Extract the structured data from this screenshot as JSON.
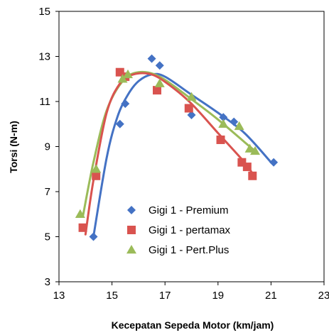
{
  "chart_data": {
    "type": "scatter",
    "title": "",
    "xlabel": "Kecepatan Sepeda Motor (km/jam)",
    "ylabel": "Torsi  (N-m)",
    "xlim": [
      13,
      23
    ],
    "ylim": [
      3,
      15
    ],
    "xticks": [
      "13",
      "15",
      "17",
      "19",
      "21",
      "23"
    ],
    "yticks": [
      "3",
      "5",
      "7",
      "9",
      "11",
      "13",
      "15"
    ],
    "grid": false,
    "legend_position": "bottom-center",
    "series": [
      {
        "name": "Gigi 1 - Premium",
        "marker": "diamond",
        "color": "#4472C4",
        "points": [
          [
            14.3,
            5.0
          ],
          [
            15.3,
            10.0
          ],
          [
            15.5,
            10.9
          ],
          [
            16.5,
            12.9
          ],
          [
            16.8,
            12.6
          ],
          [
            18.0,
            10.4
          ],
          [
            19.2,
            10.3
          ],
          [
            19.6,
            10.1
          ],
          [
            21.1,
            8.3
          ]
        ],
        "trend": [
          [
            14.3,
            5.0
          ],
          [
            14.8,
            8.5
          ],
          [
            15.2,
            10.3
          ],
          [
            15.6,
            11.3
          ],
          [
            16.0,
            11.9
          ],
          [
            16.5,
            12.2
          ],
          [
            17.0,
            12.1
          ],
          [
            18.0,
            11.3
          ],
          [
            19.0,
            10.5
          ],
          [
            20.0,
            9.6
          ],
          [
            21.0,
            8.3
          ]
        ]
      },
      {
        "name": "Gigi 1 - pertamax",
        "marker": "square",
        "color": "#D9534F",
        "points": [
          [
            13.9,
            5.4
          ],
          [
            14.4,
            7.7
          ],
          [
            15.3,
            12.3
          ],
          [
            15.5,
            12.1
          ],
          [
            16.7,
            11.5
          ],
          [
            17.9,
            10.7
          ],
          [
            19.1,
            9.3
          ],
          [
            19.9,
            8.3
          ],
          [
            20.1,
            8.1
          ],
          [
            20.3,
            7.7
          ]
        ],
        "trend": [
          [
            14.0,
            5.1
          ],
          [
            14.3,
            7.5
          ],
          [
            14.8,
            10.5
          ],
          [
            15.3,
            11.8
          ],
          [
            15.8,
            12.2
          ],
          [
            16.5,
            12.2
          ],
          [
            17.2,
            11.7
          ],
          [
            18.0,
            10.9
          ],
          [
            19.0,
            9.6
          ],
          [
            20.0,
            8.3
          ],
          [
            20.3,
            7.8
          ]
        ]
      },
      {
        "name": "Gigi 1 - Pert.Plus",
        "marker": "triangle",
        "color": "#9BBB59",
        "points": [
          [
            13.8,
            6.0
          ],
          [
            14.4,
            8.0
          ],
          [
            15.4,
            12.0
          ],
          [
            15.6,
            12.2
          ],
          [
            16.8,
            11.8
          ],
          [
            18.0,
            11.2
          ],
          [
            19.2,
            10.0
          ],
          [
            19.8,
            9.9
          ],
          [
            20.2,
            8.9
          ],
          [
            20.4,
            8.8
          ]
        ],
        "trend": [
          [
            13.9,
            5.9
          ],
          [
            14.3,
            8.3
          ],
          [
            14.8,
            10.6
          ],
          [
            15.4,
            11.9
          ],
          [
            16.0,
            12.3
          ],
          [
            16.8,
            12.1
          ],
          [
            18.0,
            11.1
          ],
          [
            19.0,
            10.2
          ],
          [
            20.0,
            9.2
          ],
          [
            20.4,
            8.8
          ]
        ]
      }
    ]
  }
}
